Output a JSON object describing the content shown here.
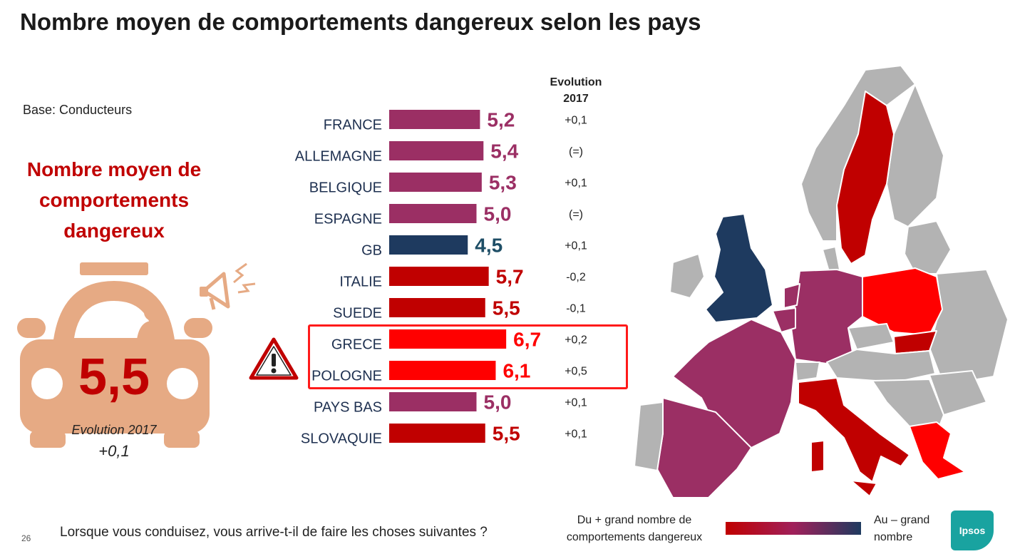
{
  "title": "Nombre moyen de comportements dangereux selon les pays",
  "base": "Base: Conducteurs",
  "kpi": {
    "title_line1": "Nombre moyen de",
    "title_line2": "comportements",
    "title_line3": "dangereux",
    "value": "5,5",
    "evolution_label": "Evolution 2017",
    "evolution_value": "+0,1"
  },
  "evolution_header": {
    "line1": "Evolution",
    "line2": "2017"
  },
  "chart_data": {
    "type": "bar",
    "orientation": "horizontal",
    "categories": [
      "FRANCE",
      "ALLEMAGNE",
      "BELGIQUE",
      "ESPAGNE",
      "GB",
      "ITALIE",
      "SUEDE",
      "GRECE",
      "POLOGNE",
      "PAYS BAS",
      "SLOVAQUIE"
    ],
    "values": [
      5.2,
      5.4,
      5.3,
      5.0,
      4.5,
      5.7,
      5.5,
      6.7,
      6.1,
      5.0,
      5.5
    ],
    "value_labels": [
      "5,2",
      "5,4",
      "5,3",
      "5,0",
      "4,5",
      "5,7",
      "5,5",
      "6,7",
      "6,1",
      "5,0",
      "5,5"
    ],
    "evolution": [
      "+0,1",
      "(=)",
      "+0,1",
      "(=)",
      "+0,1",
      "-0,2",
      "-0,1",
      "+0,2",
      "+0,5",
      "+0,1",
      "+0,1"
    ],
    "bar_colors": [
      "#9b2f64",
      "#9b2f64",
      "#9b2f64",
      "#9b2f64",
      "#1e3a5f",
      "#c00000",
      "#c00000",
      "#ff0000",
      "#ff0000",
      "#9b2f64",
      "#c00000"
    ],
    "label_colors": [
      "#9b2f64",
      "#9b2f64",
      "#9b2f64",
      "#9b2f64",
      "#1e4e66",
      "#c00000",
      "#c00000",
      "#ff0000",
      "#ff0000",
      "#9b2f64",
      "#c00000"
    ],
    "highlighted": [
      "GRECE",
      "POLOGNE"
    ]
  },
  "legend": {
    "left_line1": "Du + grand nombre de",
    "left_line2": "comportements dangereux",
    "right_line1": "Au – grand",
    "right_line2": "nombre"
  },
  "logo_text": "Ipsos",
  "page_number": "26",
  "question": "Lorsque vous conduisez, vous arrive-t-il de faire les choses suivantes ?",
  "colors": {
    "accent_red": "#c00000",
    "bright_red": "#ff0000",
    "purple": "#9b2f64",
    "navy": "#1e3a5f",
    "car": "#e6aa84",
    "map_grey": "#b3b3b3"
  },
  "icons": {
    "car": "car-icon",
    "megaphone": "megaphone-icon",
    "warning": "warning-triangle-icon",
    "map": "europe-map"
  }
}
